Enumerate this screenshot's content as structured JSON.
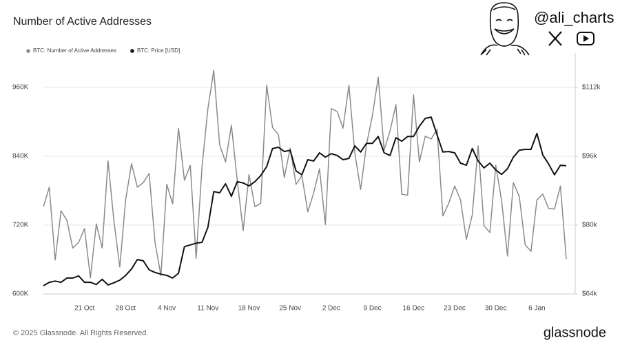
{
  "header": {
    "handle": "@ali_charts"
  },
  "footer": {
    "copyright": "© 2025 Glassnode. All Rights Reserved.",
    "brand": "glassnode"
  },
  "chart_data": {
    "type": "line",
    "title": "Number of Active Addresses",
    "categories": [
      null,
      null,
      null,
      null,
      null,
      null,
      null,
      "21 Oct",
      null,
      null,
      null,
      null,
      null,
      null,
      "28 Oct",
      null,
      null,
      null,
      null,
      null,
      null,
      "4 Nov",
      null,
      null,
      null,
      null,
      null,
      null,
      "11 Nov",
      null,
      null,
      null,
      null,
      null,
      null,
      "18 Nov",
      null,
      null,
      null,
      null,
      null,
      null,
      "25 Nov",
      null,
      null,
      null,
      null,
      null,
      null,
      "2 Dec",
      null,
      null,
      null,
      null,
      null,
      null,
      "9 Dec",
      null,
      null,
      null,
      null,
      null,
      null,
      "16 Dec",
      null,
      null,
      null,
      null,
      null,
      null,
      "23 Dec",
      null,
      null,
      null,
      null,
      null,
      null,
      "30 Dec",
      null,
      null,
      null,
      null,
      null,
      null,
      "6 Jan",
      null,
      null,
      null,
      null,
      null
    ],
    "series": [
      {
        "name": "BTC: Number of Active Addresses",
        "color": "#8a8a8a",
        "axis": "y",
        "values": [
          752000,
          786000,
          659000,
          745000,
          728000,
          680000,
          690000,
          714000,
          628000,
          722000,
          680000,
          832000,
          728000,
          647000,
          764000,
          827000,
          786000,
          794000,
          810000,
          690000,
          632000,
          791000,
          757000,
          889000,
          798000,
          824000,
          662000,
          822000,
          923000,
          990000,
          860000,
          830000,
          894000,
          798000,
          710000,
          808000,
          752000,
          758000,
          964000,
          890000,
          878000,
          803000,
          854000,
          791000,
          806000,
          743000,
          776000,
          818000,
          721000,
          923000,
          918000,
          889000,
          964000,
          846000,
          782000,
          860000,
          911000,
          978000,
          851000,
          884000,
          930000,
          774000,
          772000,
          947000,
          830000,
          875000,
          870000,
          887000,
          736000,
          758000,
          788000,
          764000,
          695000,
          738000,
          858000,
          719000,
          707000,
          824000,
          762000,
          666000,
          794000,
          770000,
          686000,
          674000,
          764000,
          774000,
          749000,
          748000,
          788000,
          661000
        ]
      },
      {
        "name": "BTC: Price [USD]",
        "color": "#111111",
        "axis": "y2",
        "values": [
          65900,
          66700,
          67000,
          66700,
          67700,
          67700,
          68200,
          66700,
          66700,
          66200,
          67400,
          66100,
          66600,
          67200,
          68300,
          69800,
          72000,
          71700,
          69600,
          69000,
          68600,
          68300,
          67700,
          68800,
          75000,
          75400,
          75800,
          76000,
          79500,
          87800,
          87500,
          89600,
          86700,
          90100,
          89800,
          89100,
          90100,
          91500,
          93600,
          97800,
          98100,
          97100,
          97400,
          92600,
          91700,
          95200,
          94900,
          96800,
          95800,
          96600,
          96200,
          95200,
          95500,
          98400,
          97000,
          99000,
          99000,
          100600,
          96800,
          96200,
          100300,
          99500,
          100600,
          100600,
          103000,
          104800,
          105100,
          101000,
          97000,
          97100,
          96800,
          94400,
          93900,
          97800,
          94900,
          93300,
          94400,
          92800,
          91800,
          93100,
          95800,
          97400,
          97600,
          97600,
          101300,
          96300,
          94200,
          91700,
          93900,
          93800
        ]
      }
    ],
    "ylim": [
      600000,
      1020000
    ],
    "yticks": [
      {
        "value": 600000,
        "label": "600K"
      },
      {
        "value": 720000,
        "label": "720K"
      },
      {
        "value": 840000,
        "label": "840K"
      },
      {
        "value": 960000,
        "label": "960K"
      }
    ],
    "y2lim": [
      64000,
      120000
    ],
    "y2ticks": [
      {
        "value": 64000,
        "label": "$64k"
      },
      {
        "value": 80000,
        "label": "$80k"
      },
      {
        "value": 96000,
        "label": "$96k"
      },
      {
        "value": 112000,
        "label": "$112k"
      }
    ],
    "grid": true,
    "legend": "top-left"
  }
}
